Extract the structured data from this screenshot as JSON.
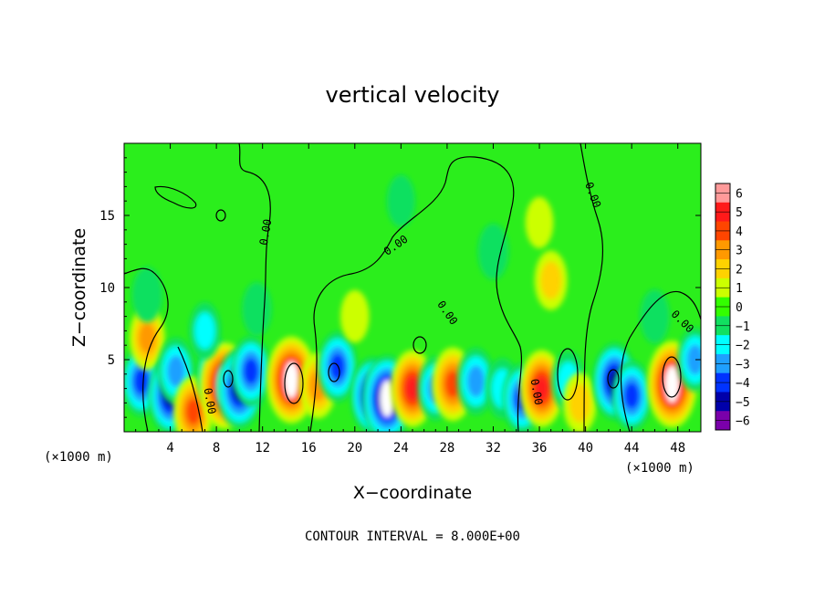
{
  "chart_data": {
    "type": "heatmap",
    "title": "vertical velocity",
    "xlabel": "X−coordinate",
    "ylabel": "Z−coordinate",
    "x_unit_left": "(×1000 m)",
    "x_unit_right": "(×1000 m)",
    "xlim": [
      0,
      50
    ],
    "ylim": [
      0,
      20
    ],
    "xticks": [
      4,
      8,
      12,
      16,
      20,
      24,
      28,
      32,
      36,
      40,
      44,
      48
    ],
    "yticks": [
      5,
      10,
      15
    ],
    "colorbar": {
      "min": -6,
      "max": 6,
      "ticks": [
        "6",
        "5",
        "4",
        "3",
        "2",
        "1",
        "0",
        "−1",
        "−2",
        "−3",
        "−4",
        "−5",
        "−6"
      ],
      "colors": [
        "#ff9a9a",
        "#ff1a1a",
        "#ff4500",
        "#ff9900",
        "#ffd200",
        "#ccff00",
        "#33ff00",
        "#11e060",
        "#00ffff",
        "#1fa0ff",
        "#0033ff",
        "#0000aa",
        "#7a00aa"
      ]
    },
    "contour_labels": [
      "0.00",
      "0.00",
      "0.00",
      "0.00",
      "0.00",
      "0.00",
      "0.00"
    ],
    "contour_interval_text": "CONTOUR INTERVAL = 8.000E+00",
    "cells": [
      {
        "x": 1.5,
        "z": 3.5,
        "w": -3.5
      },
      {
        "x": 2.0,
        "z": 6.5,
        "w": 2.5
      },
      {
        "x": 4.0,
        "z": 2.5,
        "w": -4.5
      },
      {
        "x": 4.5,
        "z": 4.2,
        "w": -3.0
      },
      {
        "x": 6.0,
        "z": 1.4,
        "w": 3.5
      },
      {
        "x": 8.0,
        "z": 4.0,
        "w": -3.5
      },
      {
        "x": 8.7,
        "z": 3.2,
        "w": 6.0
      },
      {
        "x": 10.0,
        "z": 3.0,
        "w": -5.0
      },
      {
        "x": 11.0,
        "z": 4.2,
        "w": -3.5
      },
      {
        "x": 14.5,
        "z": 3.6,
        "w": 6.0
      },
      {
        "x": 16.8,
        "z": 3.2,
        "w": 2.8
      },
      {
        "x": 18.5,
        "z": 4.5,
        "w": -3.5
      },
      {
        "x": 21.5,
        "z": 2.5,
        "w": -4.5
      },
      {
        "x": 22.8,
        "z": 2.3,
        "w": -6.0
      },
      {
        "x": 25.0,
        "z": 3.0,
        "w": 4.5
      },
      {
        "x": 27.0,
        "z": 3.0,
        "w": -2.5
      },
      {
        "x": 28.5,
        "z": 3.3,
        "w": 4.0
      },
      {
        "x": 30.5,
        "z": 3.5,
        "w": -3.0
      },
      {
        "x": 32.8,
        "z": 3.0,
        "w": -2.0
      },
      {
        "x": 34.5,
        "z": 2.3,
        "w": -3.5
      },
      {
        "x": 36.2,
        "z": 3.0,
        "w": 4.5
      },
      {
        "x": 38.5,
        "z": 3.5,
        "w": -2.0
      },
      {
        "x": 39.5,
        "z": 2.0,
        "w": 2.0
      },
      {
        "x": 42.5,
        "z": 3.5,
        "w": -4.5
      },
      {
        "x": 44.0,
        "z": 2.5,
        "w": -3.5
      },
      {
        "x": 47.5,
        "z": 3.3,
        "w": 6.0
      },
      {
        "x": 49.5,
        "z": 5.0,
        "w": -2.5
      },
      {
        "x": 37.0,
        "z": 10.5,
        "w": 1.8
      },
      {
        "x": 36.0,
        "z": 14.5,
        "w": 0.6
      },
      {
        "x": 32.0,
        "z": 12.5,
        "w": -1.3
      },
      {
        "x": 7.0,
        "z": 7.0,
        "w": -1.5
      },
      {
        "x": 11.5,
        "z": 8.5,
        "w": -1.0
      },
      {
        "x": 2.0,
        "z": 9.5,
        "w": -1.2
      },
      {
        "x": 46.0,
        "z": 8.0,
        "w": -1.0
      },
      {
        "x": 20.0,
        "z": 8.0,
        "w": 0.8
      },
      {
        "x": 24.0,
        "z": 16.0,
        "w": -0.7
      }
    ]
  }
}
